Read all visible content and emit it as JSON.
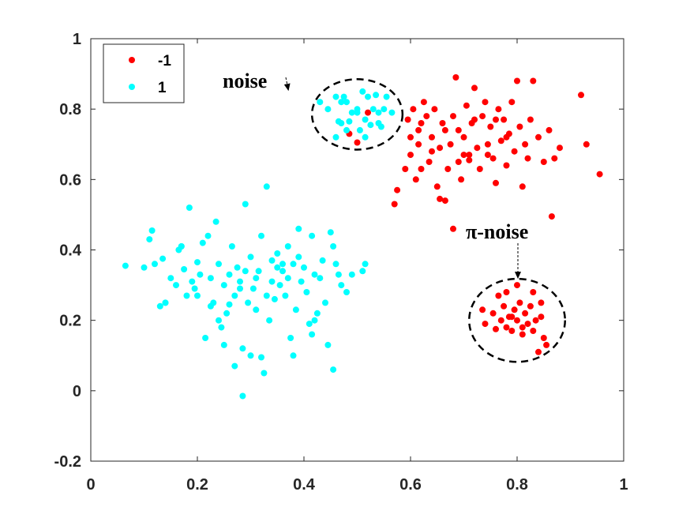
{
  "chart_data": {
    "type": "scatter",
    "xlim": [
      0,
      1
    ],
    "ylim": [
      -0.2,
      1
    ],
    "xticks": [
      "0",
      "0.2",
      "0.4",
      "0.6",
      "0.8",
      "1"
    ],
    "yticks": [
      "-0.2",
      "0",
      "0.2",
      "0.4",
      "0.6",
      "0.8",
      "1"
    ],
    "grid": false,
    "legend_position": "top-left",
    "series": [
      {
        "name": "-1",
        "color": "#ff0000",
        "points": [
          [
            0.52,
            0.79
          ],
          [
            0.5,
            0.705
          ],
          [
            0.485,
            0.73
          ],
          [
            0.57,
            0.53
          ],
          [
            0.575,
            0.57
          ],
          [
            0.59,
            0.63
          ],
          [
            0.6,
            0.67
          ],
          [
            0.605,
            0.8
          ],
          [
            0.61,
            0.6
          ],
          [
            0.615,
            0.7
          ],
          [
            0.62,
            0.76
          ],
          [
            0.625,
            0.82
          ],
          [
            0.63,
            0.78
          ],
          [
            0.635,
            0.65
          ],
          [
            0.64,
            0.72
          ],
          [
            0.645,
            0.8
          ],
          [
            0.65,
            0.58
          ],
          [
            0.655,
            0.69
          ],
          [
            0.66,
            0.76
          ],
          [
            0.665,
            0.54
          ],
          [
            0.67,
            0.63
          ],
          [
            0.675,
            0.7
          ],
          [
            0.68,
            0.78
          ],
          [
            0.685,
            0.89
          ],
          [
            0.69,
            0.65
          ],
          [
            0.695,
            0.6
          ],
          [
            0.7,
            0.72
          ],
          [
            0.705,
            0.81
          ],
          [
            0.71,
            0.67
          ],
          [
            0.715,
            0.76
          ],
          [
            0.72,
            0.86
          ],
          [
            0.725,
            0.69
          ],
          [
            0.73,
            0.63
          ],
          [
            0.735,
            0.78
          ],
          [
            0.74,
            0.82
          ],
          [
            0.745,
            0.7
          ],
          [
            0.75,
            0.75
          ],
          [
            0.755,
            0.66
          ],
          [
            0.76,
            0.59
          ],
          [
            0.765,
            0.8
          ],
          [
            0.77,
            0.71
          ],
          [
            0.775,
            0.77
          ],
          [
            0.78,
            0.64
          ],
          [
            0.785,
            0.73
          ],
          [
            0.79,
            0.82
          ],
          [
            0.795,
            0.68
          ],
          [
            0.8,
            0.88
          ],
          [
            0.805,
            0.75
          ],
          [
            0.81,
            0.58
          ],
          [
            0.815,
            0.7
          ],
          [
            0.82,
            0.66
          ],
          [
            0.825,
            0.77
          ],
          [
            0.83,
            0.88
          ],
          [
            0.84,
            0.72
          ],
          [
            0.85,
            0.65
          ],
          [
            0.86,
            0.74
          ],
          [
            0.87,
            0.66
          ],
          [
            0.88,
            0.69
          ],
          [
            0.92,
            0.84
          ],
          [
            0.93,
            0.7
          ],
          [
            0.955,
            0.615
          ],
          [
            0.615,
            0.74
          ],
          [
            0.665,
            0.74
          ],
          [
            0.7,
            0.67
          ],
          [
            0.72,
            0.77
          ],
          [
            0.745,
            0.67
          ],
          [
            0.64,
            0.68
          ],
          [
            0.69,
            0.74
          ],
          [
            0.78,
            0.72
          ],
          [
            0.62,
            0.63
          ],
          [
            0.655,
            0.545
          ],
          [
            0.71,
            0.655
          ],
          [
            0.6,
            0.72
          ],
          [
            0.595,
            0.77
          ],
          [
            0.76,
            0.77
          ],
          [
            0.68,
            0.46
          ],
          [
            0.865,
            0.495
          ],
          [
            0.735,
            0.23
          ],
          [
            0.74,
            0.19
          ],
          [
            0.755,
            0.22
          ],
          [
            0.76,
            0.175
          ],
          [
            0.765,
            0.27
          ],
          [
            0.77,
            0.2
          ],
          [
            0.775,
            0.24
          ],
          [
            0.78,
            0.18
          ],
          [
            0.785,
            0.21
          ],
          [
            0.79,
            0.17
          ],
          [
            0.795,
            0.23
          ],
          [
            0.8,
            0.2
          ],
          [
            0.805,
            0.25
          ],
          [
            0.81,
            0.18
          ],
          [
            0.815,
            0.22
          ],
          [
            0.82,
            0.19
          ],
          [
            0.825,
            0.24
          ],
          [
            0.83,
            0.17
          ],
          [
            0.835,
            0.2
          ],
          [
            0.84,
            0.11
          ],
          [
            0.845,
            0.21
          ],
          [
            0.85,
            0.15
          ],
          [
            0.855,
            0.13
          ],
          [
            0.8,
            0.3
          ],
          [
            0.78,
            0.28
          ],
          [
            0.83,
            0.28
          ],
          [
            0.81,
            0.16
          ],
          [
            0.79,
            0.21
          ],
          [
            0.845,
            0.25
          ]
        ]
      },
      {
        "name": "1",
        "color": "#00ffff",
        "points": [
          [
            0.065,
            0.355
          ],
          [
            0.1,
            0.35
          ],
          [
            0.11,
            0.43
          ],
          [
            0.115,
            0.455
          ],
          [
            0.12,
            0.36
          ],
          [
            0.13,
            0.24
          ],
          [
            0.135,
            0.375
          ],
          [
            0.14,
            0.25
          ],
          [
            0.15,
            0.32
          ],
          [
            0.16,
            0.3
          ],
          [
            0.165,
            0.4
          ],
          [
            0.17,
            0.41
          ],
          [
            0.175,
            0.345
          ],
          [
            0.18,
            0.27
          ],
          [
            0.185,
            0.52
          ],
          [
            0.19,
            0.31
          ],
          [
            0.195,
            0.29
          ],
          [
            0.2,
            0.365
          ],
          [
            0.205,
            0.33
          ],
          [
            0.21,
            0.42
          ],
          [
            0.215,
            0.15
          ],
          [
            0.22,
            0.44
          ],
          [
            0.225,
            0.32
          ],
          [
            0.23,
            0.25
          ],
          [
            0.235,
            0.48
          ],
          [
            0.24,
            0.36
          ],
          [
            0.245,
            0.18
          ],
          [
            0.25,
            0.3
          ],
          [
            0.255,
            0.22
          ],
          [
            0.26,
            0.33
          ],
          [
            0.265,
            0.41
          ],
          [
            0.27,
            0.27
          ],
          [
            0.275,
            0.35
          ],
          [
            0.28,
            0.31
          ],
          [
            0.285,
            0.12
          ],
          [
            0.29,
            0.53
          ],
          [
            0.295,
            0.25
          ],
          [
            0.3,
            0.38
          ],
          [
            0.305,
            0.29
          ],
          [
            0.31,
            0.23
          ],
          [
            0.315,
            0.34
          ],
          [
            0.32,
            0.44
          ],
          [
            0.325,
            0.05
          ],
          [
            0.33,
            0.58
          ],
          [
            0.335,
            0.2
          ],
          [
            0.34,
            0.37
          ],
          [
            0.345,
            0.26
          ],
          [
            0.35,
            0.39
          ],
          [
            0.355,
            0.3
          ],
          [
            0.36,
            0.34
          ],
          [
            0.365,
            0.27
          ],
          [
            0.37,
            0.41
          ],
          [
            0.375,
            0.15
          ],
          [
            0.38,
            0.36
          ],
          [
            0.385,
            0.23
          ],
          [
            0.39,
            0.46
          ],
          [
            0.395,
            0.31
          ],
          [
            0.4,
            0.35
          ],
          [
            0.405,
            0.28
          ],
          [
            0.41,
            0.19
          ],
          [
            0.415,
            0.44
          ],
          [
            0.42,
            0.33
          ],
          [
            0.425,
            0.22
          ],
          [
            0.43,
            0.32
          ],
          [
            0.435,
            0.37
          ],
          [
            0.44,
            0.25
          ],
          [
            0.445,
            0.13
          ],
          [
            0.45,
            0.45
          ],
          [
            0.455,
            0.06
          ],
          [
            0.46,
            0.36
          ],
          [
            0.47,
            0.3
          ],
          [
            0.48,
            0.28
          ],
          [
            0.49,
            0.33
          ],
          [
            0.51,
            0.34
          ],
          [
            0.515,
            0.36
          ],
          [
            0.27,
            0.07
          ],
          [
            0.285,
            -0.015
          ],
          [
            0.32,
            0.095
          ],
          [
            0.28,
            0.29
          ],
          [
            0.26,
            0.245
          ],
          [
            0.31,
            0.32
          ],
          [
            0.33,
            0.27
          ],
          [
            0.225,
            0.24
          ],
          [
            0.24,
            0.2
          ],
          [
            0.35,
            0.35
          ],
          [
            0.3,
            0.1
          ],
          [
            0.36,
            0.36
          ],
          [
            0.415,
            0.16
          ],
          [
            0.38,
            0.1
          ],
          [
            0.25,
            0.13
          ],
          [
            0.2,
            0.27
          ],
          [
            0.17,
            0.41
          ],
          [
            0.14,
            0.25
          ],
          [
            0.29,
            0.34
          ],
          [
            0.34,
            0.31
          ],
          [
            0.37,
            0.32
          ],
          [
            0.39,
            0.38
          ],
          [
            0.42,
            0.2
          ],
          [
            0.455,
            0.41
          ],
          [
            0.465,
            0.33
          ],
          [
            0.43,
            0.82
          ],
          [
            0.445,
            0.8
          ],
          [
            0.46,
            0.835
          ],
          [
            0.465,
            0.765
          ],
          [
            0.47,
            0.82
          ],
          [
            0.475,
            0.835
          ],
          [
            0.48,
            0.74
          ],
          [
            0.485,
            0.765
          ],
          [
            0.49,
            0.79
          ],
          [
            0.5,
            0.8
          ],
          [
            0.505,
            0.74
          ],
          [
            0.51,
            0.85
          ],
          [
            0.515,
            0.77
          ],
          [
            0.52,
            0.835
          ],
          [
            0.525,
            0.755
          ],
          [
            0.53,
            0.8
          ],
          [
            0.535,
            0.84
          ],
          [
            0.54,
            0.76
          ],
          [
            0.545,
            0.75
          ],
          [
            0.55,
            0.8
          ],
          [
            0.555,
            0.835
          ],
          [
            0.565,
            0.79
          ],
          [
            0.46,
            0.72
          ],
          [
            0.515,
            0.72
          ],
          [
            0.47,
            0.76
          ],
          [
            0.5,
            0.79
          ],
          [
            0.54,
            0.79
          ],
          [
            0.48,
            0.82
          ]
        ]
      }
    ],
    "annotations": [
      {
        "text": "noise",
        "arrow_to": [
          0.43,
          0.845
        ],
        "ellipse_center": [
          0.5,
          0.785
        ],
        "ellipse_radii": [
          0.085,
          0.1
        ]
      },
      {
        "text": "π-noise",
        "arrow_to": [
          0.8,
          0.32
        ],
        "ellipse_center": [
          0.8,
          0.2
        ],
        "ellipse_radii": [
          0.09,
          0.118
        ]
      }
    ]
  }
}
